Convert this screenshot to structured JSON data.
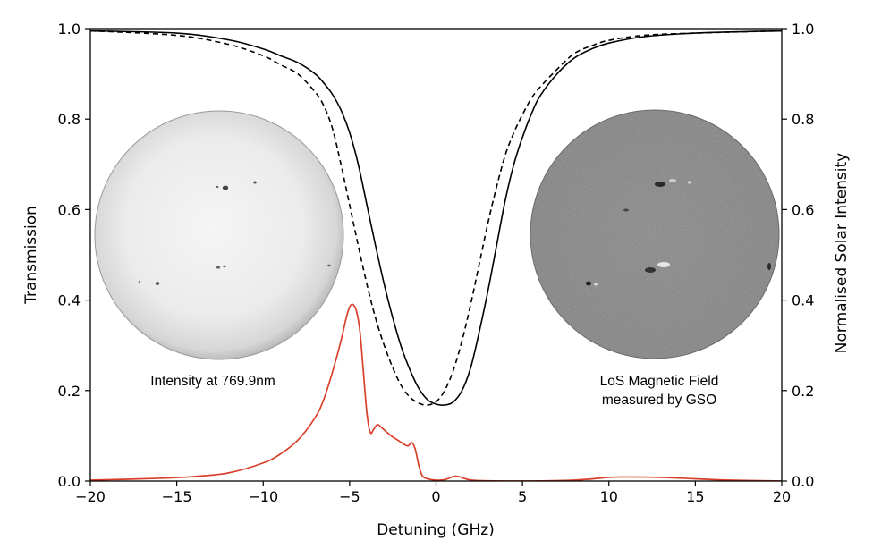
{
  "chart_data": {
    "type": "line",
    "xlabel": "Detuning (GHz)",
    "ylabel_left": "Transmission",
    "ylabel_right": "Normalised Solar Intensity",
    "xlim": [
      -20,
      20
    ],
    "ylim_left": [
      0.0,
      1.0
    ],
    "ylim_right": [
      0.0,
      1.0
    ],
    "x_ticks": [
      -20,
      -15,
      -10,
      -5,
      0,
      5,
      10,
      15,
      20
    ],
    "x_tick_labels": [
      "−20",
      "−15",
      "−10",
      "−5",
      "0",
      "5",
      "10",
      "15",
      "20"
    ],
    "y_ticks": [
      0.0,
      0.2,
      0.4,
      0.6,
      0.8,
      1.0
    ],
    "y_tick_labels": [
      "0.0",
      "0.2",
      "0.4",
      "0.6",
      "0.8",
      "1.0"
    ],
    "y_right_tick_labels": [
      "0.0",
      "0.2",
      "0.4",
      "0.6",
      "0.8",
      "1.0"
    ],
    "series": [
      {
        "name": "transmission-solid",
        "style": "solid",
        "color": "#000000",
        "axis": "right",
        "x": [
          -20,
          -15,
          -12,
          -10,
          -9,
          -8,
          -7,
          -6.5,
          -6,
          -5.5,
          -5,
          -4.5,
          -4,
          -3.5,
          -3,
          -2.5,
          -2,
          -1.5,
          -1,
          -0.5,
          0,
          0.5,
          1,
          1.5,
          2,
          2.5,
          3,
          3.5,
          4,
          4.5,
          5,
          5.5,
          6,
          7,
          8,
          9,
          10,
          12,
          15,
          20
        ],
        "values": [
          0.995,
          0.99,
          0.975,
          0.955,
          0.94,
          0.925,
          0.9,
          0.88,
          0.855,
          0.82,
          0.77,
          0.7,
          0.61,
          0.52,
          0.435,
          0.36,
          0.295,
          0.245,
          0.205,
          0.18,
          0.17,
          0.168,
          0.175,
          0.2,
          0.25,
          0.33,
          0.42,
          0.52,
          0.62,
          0.7,
          0.76,
          0.81,
          0.85,
          0.9,
          0.935,
          0.955,
          0.968,
          0.982,
          0.99,
          0.995
        ]
      },
      {
        "name": "transmission-dashed",
        "style": "dashed",
        "color": "#000000",
        "axis": "right",
        "x": [
          -20,
          -15,
          -12,
          -10,
          -9,
          -8,
          -7,
          -6.5,
          -6,
          -5.5,
          -5,
          -4.5,
          -4,
          -3.5,
          -3,
          -2.5,
          -2,
          -1.5,
          -1,
          -0.5,
          0,
          0.5,
          1,
          1.5,
          2,
          2.5,
          3,
          3.5,
          4,
          4.5,
          5,
          5.5,
          6,
          7,
          8,
          9,
          10,
          12,
          15,
          20
        ],
        "values": [
          0.995,
          0.985,
          0.965,
          0.94,
          0.92,
          0.9,
          0.86,
          0.83,
          0.78,
          0.7,
          0.61,
          0.52,
          0.435,
          0.36,
          0.3,
          0.25,
          0.21,
          0.185,
          0.172,
          0.168,
          0.175,
          0.2,
          0.245,
          0.31,
          0.39,
          0.48,
          0.57,
          0.65,
          0.72,
          0.77,
          0.81,
          0.845,
          0.87,
          0.91,
          0.945,
          0.962,
          0.974,
          0.985,
          0.99,
          0.995
        ]
      },
      {
        "name": "solar-intensity",
        "style": "solid",
        "color": "#d9402c",
        "axis": "left",
        "x": [
          -20,
          -16,
          -14,
          -12,
          -10,
          -9,
          -8,
          -7,
          -6.5,
          -6,
          -5.5,
          -5.2,
          -5,
          -4.8,
          -4.6,
          -4.4,
          -4.2,
          -4,
          -3.8,
          -3.6,
          -3.4,
          -3.2,
          -3,
          -2.6,
          -2.2,
          -1.8,
          -1.6,
          -1.4,
          -1.2,
          -1,
          -0.8,
          -0.5,
          0,
          0.5,
          1,
          1.3,
          1.8,
          2.5,
          5,
          8,
          10,
          11,
          13,
          15,
          17,
          20
        ],
        "values": [
          0.002,
          0.006,
          0.01,
          0.018,
          0.04,
          0.06,
          0.09,
          0.14,
          0.18,
          0.24,
          0.31,
          0.36,
          0.385,
          0.39,
          0.375,
          0.33,
          0.24,
          0.15,
          0.107,
          0.115,
          0.125,
          0.12,
          0.113,
          0.1,
          0.09,
          0.08,
          0.078,
          0.085,
          0.07,
          0.035,
          0.012,
          0.005,
          0.002,
          0.003,
          0.01,
          0.01,
          0.004,
          0.001,
          0.0,
          0.002,
          0.008,
          0.009,
          0.008,
          0.005,
          0.002,
          0.0
        ]
      }
    ],
    "insets": {
      "left": {
        "caption": "Intensity at 769.9nm"
      },
      "right": {
        "caption_line1": "LoS Magnetic Field",
        "caption_line2": "measured by GSO"
      }
    }
  }
}
